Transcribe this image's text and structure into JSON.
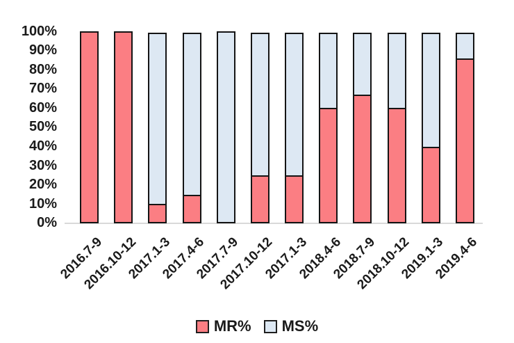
{
  "chart_data": {
    "type": "bar",
    "stacked": true,
    "title": "",
    "categories": [
      "2016.7-9",
      "2016.10-12",
      "2017.1-3",
      "2017.4-6",
      "2017.7-9",
      "2017.10-12",
      "2017.1-3",
      "2018.4-6",
      "2018.7-9",
      "2018.10-12",
      "2019.1-3",
      "2019.4-6"
    ],
    "series": [
      {
        "name": "MR%",
        "color": "#FB7E83",
        "values": [
          100,
          100,
          10,
          15,
          0,
          25,
          25,
          60,
          67,
          60,
          40,
          86
        ]
      },
      {
        "name": "MS%",
        "color": "#DDE8F3",
        "values": [
          0,
          0,
          90,
          85,
          100,
          75,
          75,
          40,
          33,
          40,
          60,
          14
        ]
      }
    ],
    "ylim": [
      0,
      100
    ],
    "y_ticks": [
      "100%",
      "90%",
      "80%",
      "70%",
      "60%",
      "50%",
      "40%",
      "30%",
      "20%",
      "10%",
      "0%"
    ],
    "grid": false,
    "legend_position": "bottom"
  },
  "legend": {
    "items": [
      {
        "label": "MR%",
        "color": "#FB7E83"
      },
      {
        "label": "MS%",
        "color": "#DDE8F3"
      }
    ]
  },
  "colors": {
    "bar_border": "#141414",
    "axis_line": "#D9D9D9",
    "legend_swatch_border": "#1f1f1f",
    "text": "#1A1A1A",
    "background": "#FFFFFF"
  }
}
